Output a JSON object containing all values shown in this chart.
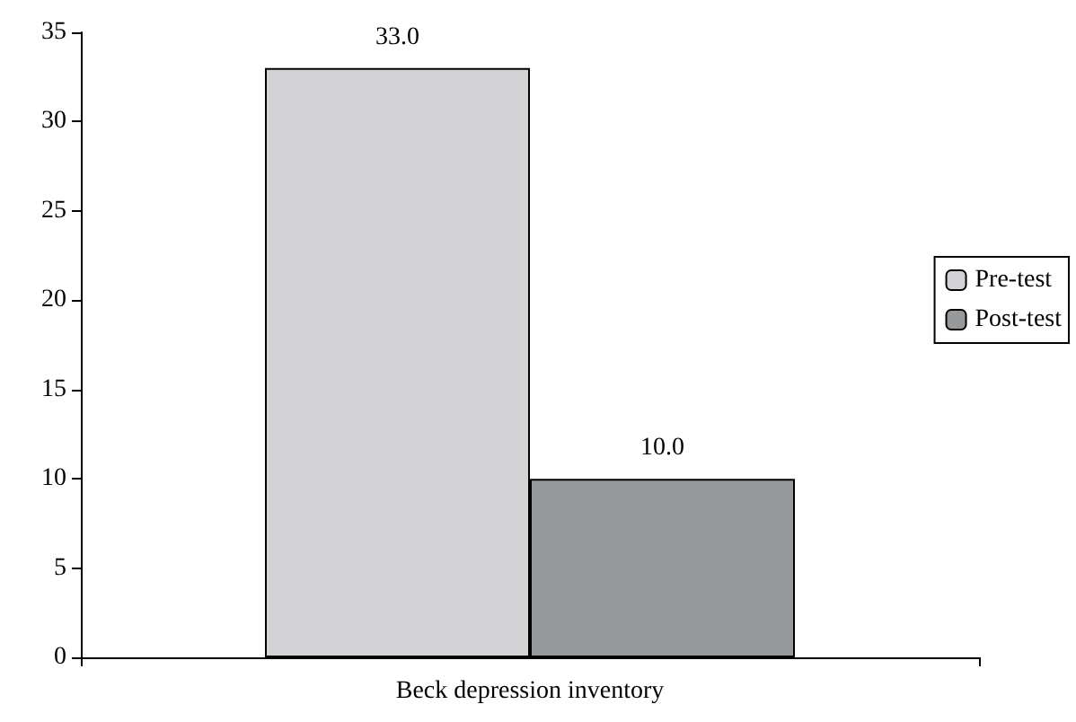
{
  "chart_data": {
    "type": "bar",
    "categories": [
      "Beck depression inventory"
    ],
    "series": [
      {
        "name": "Pre-test",
        "color": "#d3d3d5",
        "values": [
          33
        ],
        "value_labels": [
          "33.0"
        ]
      },
      {
        "name": "Post-test",
        "color": "#98999b",
        "values": [
          10
        ],
        "value_labels": [
          "10.0"
        ]
      }
    ],
    "ylim": [
      0,
      35
    ],
    "yticks": [
      0,
      5,
      10,
      15,
      20,
      25,
      30,
      35
    ],
    "grid": false,
    "legend": "right"
  }
}
